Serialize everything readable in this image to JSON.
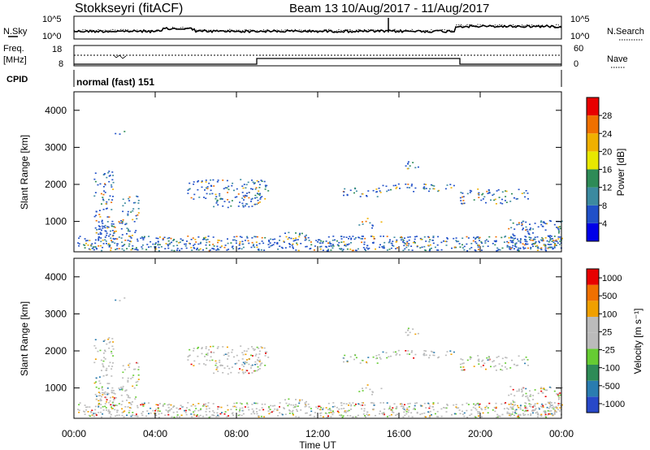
{
  "header": {
    "title": "Stokkseyri (fitACF)",
    "beam": "Beam 13",
    "date_range": "10/Aug/2017 - 11/Aug/2017"
  },
  "top_panel": {
    "left_label": "N.Sky",
    "right_label": "N.Search",
    "left_ticks": [
      "10^5",
      "10^0"
    ],
    "right_ticks": [
      "10^5",
      "10^0"
    ]
  },
  "freq_panel": {
    "left_label_line1": "Freq.",
    "left_label_line2": "[MHz]",
    "right_label": "Nave",
    "left_ticks": [
      "18",
      "8"
    ],
    "right_ticks": [
      "60",
      "0"
    ]
  },
  "cpid": {
    "label": "CPID",
    "value": "normal (fast) 151"
  },
  "time_axis": {
    "label": "Time UT",
    "ticks": [
      "00:00",
      "04:00",
      "08:00",
      "12:00",
      "16:00",
      "20:00",
      "00:00"
    ]
  },
  "chart_data": [
    {
      "type": "heatmap",
      "title": "Power [dB]",
      "ylabel": "Slant Range [km]",
      "xlabel": "Time UT",
      "xlim": [
        0,
        24
      ],
      "ylim": [
        180,
        4500
      ],
      "y_ticks": [
        "1000",
        "2000",
        "3000",
        "4000"
      ],
      "colorbar": {
        "label": "Power [dB]",
        "ticks": [
          "4",
          "8",
          "12",
          "16",
          "20",
          "24",
          "28"
        ],
        "colors": [
          "#0000e8",
          "#2050c8",
          "#3c8aa0",
          "#2e8b57",
          "#e8e800",
          "#f0b000",
          "#f07000",
          "#e80000"
        ]
      }
    },
    {
      "type": "heatmap",
      "title": "Velocity [m s-1]",
      "ylabel": "Slant Range [km]",
      "xlabel": "Time UT",
      "xlim": [
        0,
        24
      ],
      "ylim": [
        180,
        4500
      ],
      "y_ticks": [
        "1000",
        "2000",
        "3000",
        "4000"
      ],
      "colorbar": {
        "label": "Velocity [m s⁻¹]",
        "ticks": [
          "1000",
          "500",
          "100",
          "25",
          "-25",
          "-100",
          "-500",
          "-1000"
        ],
        "colors": [
          "#2848c8",
          "#2a7cb0",
          "#2e8b57",
          "#66cc33",
          "#bbbbbb",
          "#bbbbbb",
          "#f0a000",
          "#f07000",
          "#e80000"
        ]
      }
    }
  ]
}
